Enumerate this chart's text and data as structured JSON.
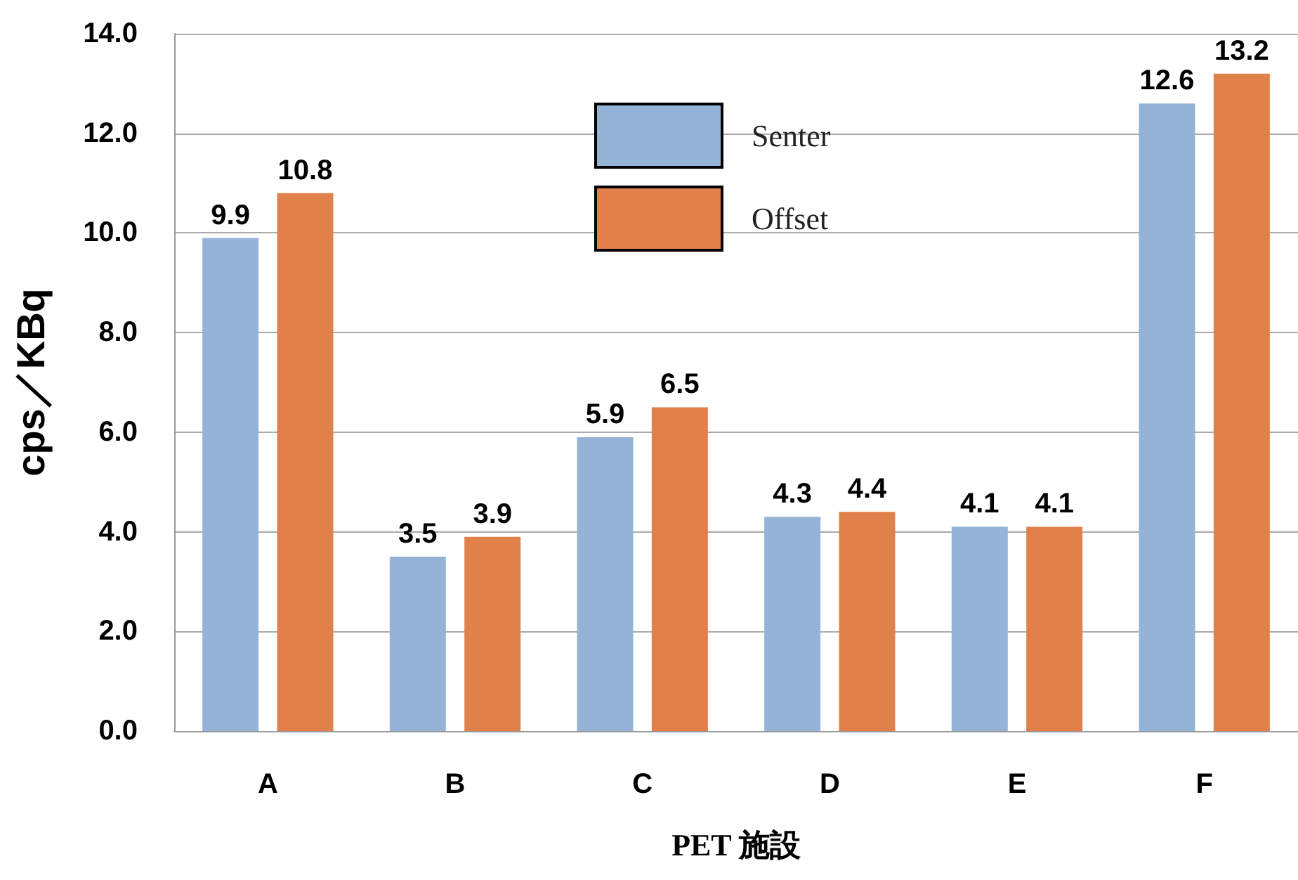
{
  "chart_data": {
    "type": "bar",
    "xlabel": "PET 施設",
    "ylabel": "cps／KBq",
    "categories": [
      "A",
      "B",
      "C",
      "D",
      "E",
      "F"
    ],
    "series": [
      {
        "name": "Senter",
        "color": "#95b3d7",
        "values": [
          9.9,
          3.5,
          5.9,
          4.3,
          4.1,
          12.6
        ]
      },
      {
        "name": "Offset",
        "color": "#e0804a",
        "values": [
          10.8,
          3.9,
          6.5,
          4.4,
          4.1,
          13.2
        ]
      }
    ],
    "ylim": [
      0,
      14
    ],
    "yticks": [
      {
        "value": 0,
        "label": "0.0"
      },
      {
        "value": 2,
        "label": "2.0"
      },
      {
        "value": 4,
        "label": "4.0"
      },
      {
        "value": 6,
        "label": "6.0"
      },
      {
        "value": 8,
        "label": "8.0"
      },
      {
        "value": 10,
        "label": "10.0"
      },
      {
        "value": 12,
        "label": "12.0"
      },
      {
        "value": 14,
        "label": "14.0"
      }
    ],
    "grid": "y",
    "legend": "top",
    "data_labels": true
  }
}
